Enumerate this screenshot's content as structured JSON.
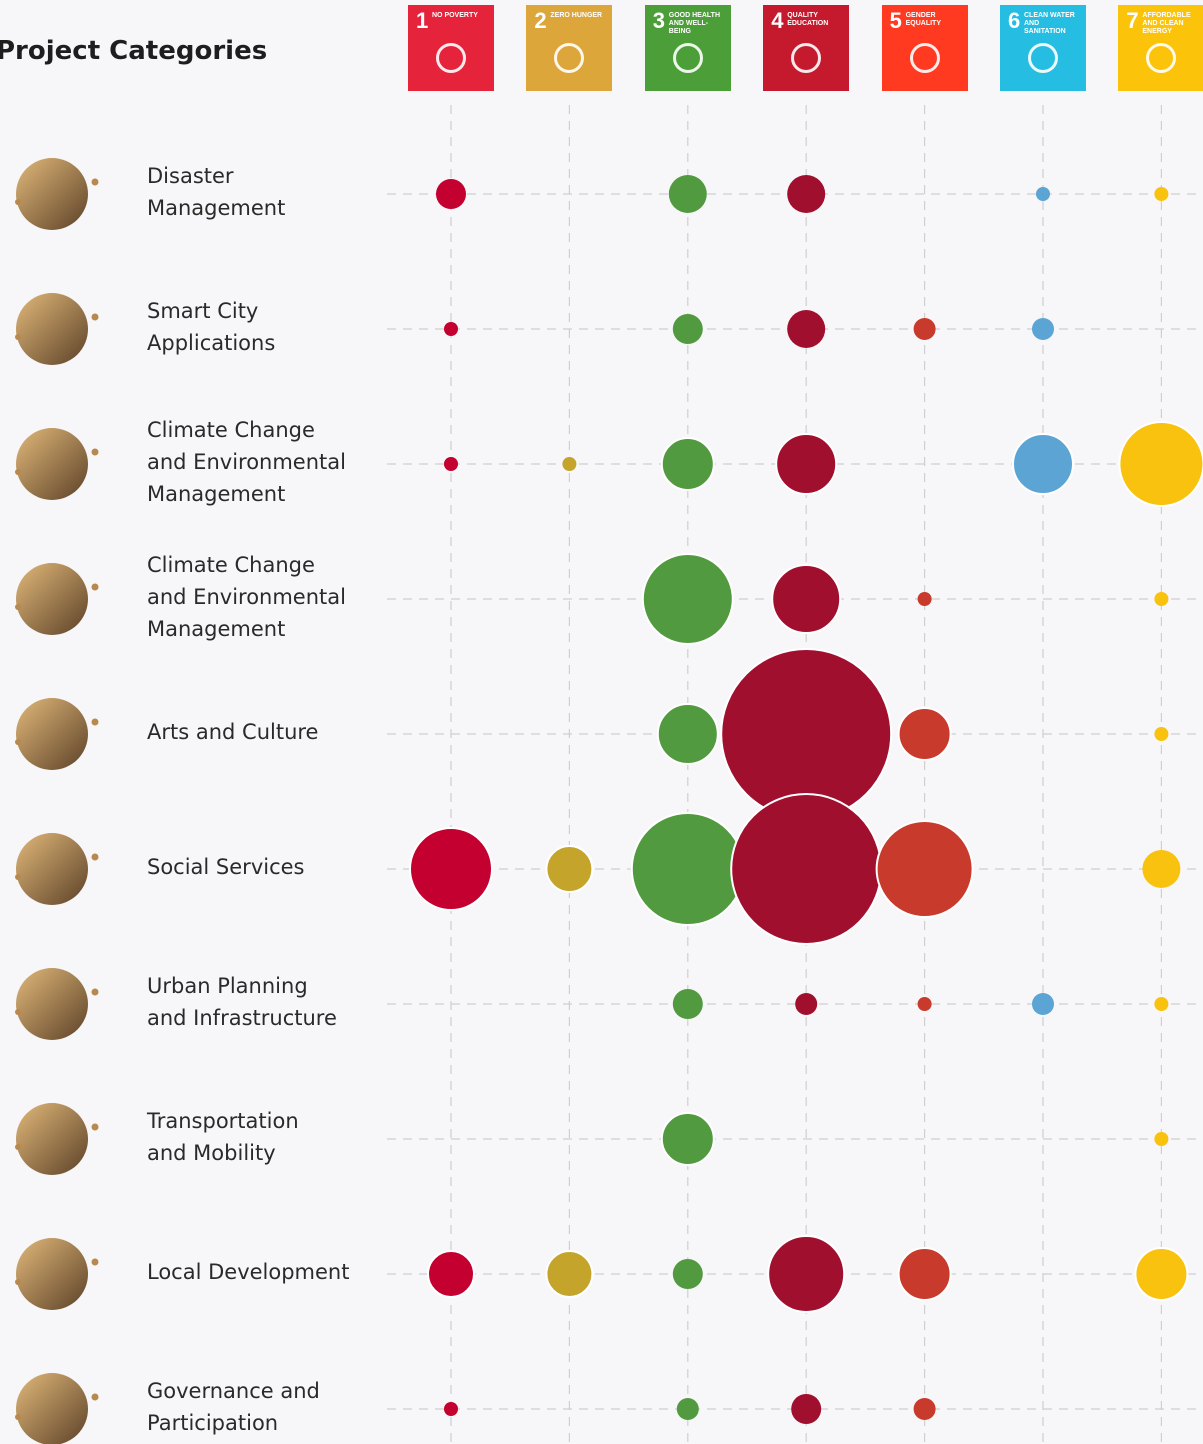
{
  "chart_data": {
    "type": "bubble-matrix",
    "title": "Project Categories",
    "categories": [
      [
        "Disaster",
        "Management"
      ],
      [
        "Smart City",
        "Applications"
      ],
      [
        "Climate Change",
        "and Environmental",
        "Management"
      ],
      [
        "Climate Change",
        "and Environmental",
        "Management"
      ],
      [
        "Arts and Culture"
      ],
      [
        "Social Services"
      ],
      [
        "Urban Planning",
        "and Infrastructure"
      ],
      [
        "Transportation",
        "and Mobility"
      ],
      [
        "Local Development"
      ],
      [
        "Governance and",
        "Participation"
      ]
    ],
    "grid": true,
    "series": [
      {
        "number": 1,
        "name": "NO POVERTY",
        "color": "#e5243b",
        "bubble_color": "#c3002f",
        "values": [
          15,
          7,
          7,
          null,
          null,
          41,
          null,
          null,
          23,
          7
        ]
      },
      {
        "number": 2,
        "name": "ZERO HUNGER",
        "color": "#dda63a",
        "bubble_color": "#c4a42a",
        "values": [
          null,
          null,
          7,
          null,
          null,
          23,
          null,
          null,
          23,
          null
        ]
      },
      {
        "number": 3,
        "name": "GOOD HEALTH AND WELL-BEING",
        "color": "#4c9f38",
        "bubble_color": "#529a3f",
        "values": [
          19,
          15,
          26,
          45,
          30,
          56,
          15,
          26,
          15,
          11
        ]
      },
      {
        "number": 4,
        "name": "QUALITY EDUCATION",
        "color": "#c5192d",
        "bubble_color": "#a10f2f",
        "values": [
          19,
          19,
          30,
          34,
          85,
          75,
          11,
          null,
          38,
          15
        ]
      },
      {
        "number": 5,
        "name": "GENDER EQUALITY",
        "color": "#ff3a21",
        "bubble_color": "#c73a2c",
        "values": [
          null,
          11,
          null,
          7,
          26,
          48,
          7,
          null,
          26,
          11
        ]
      },
      {
        "number": 6,
        "name": "CLEAN WATER AND SANITATION",
        "color": "#26bde2",
        "bubble_color": "#5ba4d4",
        "values": [
          7,
          11,
          30,
          null,
          null,
          null,
          11,
          null,
          null,
          null
        ]
      },
      {
        "number": 7,
        "name": "AFFORDABLE AND CLEAN ENERGY",
        "color": "#fcc30b",
        "bubble_color": "#f9c20f",
        "values": [
          7,
          null,
          42,
          7,
          7,
          19,
          7,
          7,
          26,
          null
        ]
      }
    ]
  }
}
